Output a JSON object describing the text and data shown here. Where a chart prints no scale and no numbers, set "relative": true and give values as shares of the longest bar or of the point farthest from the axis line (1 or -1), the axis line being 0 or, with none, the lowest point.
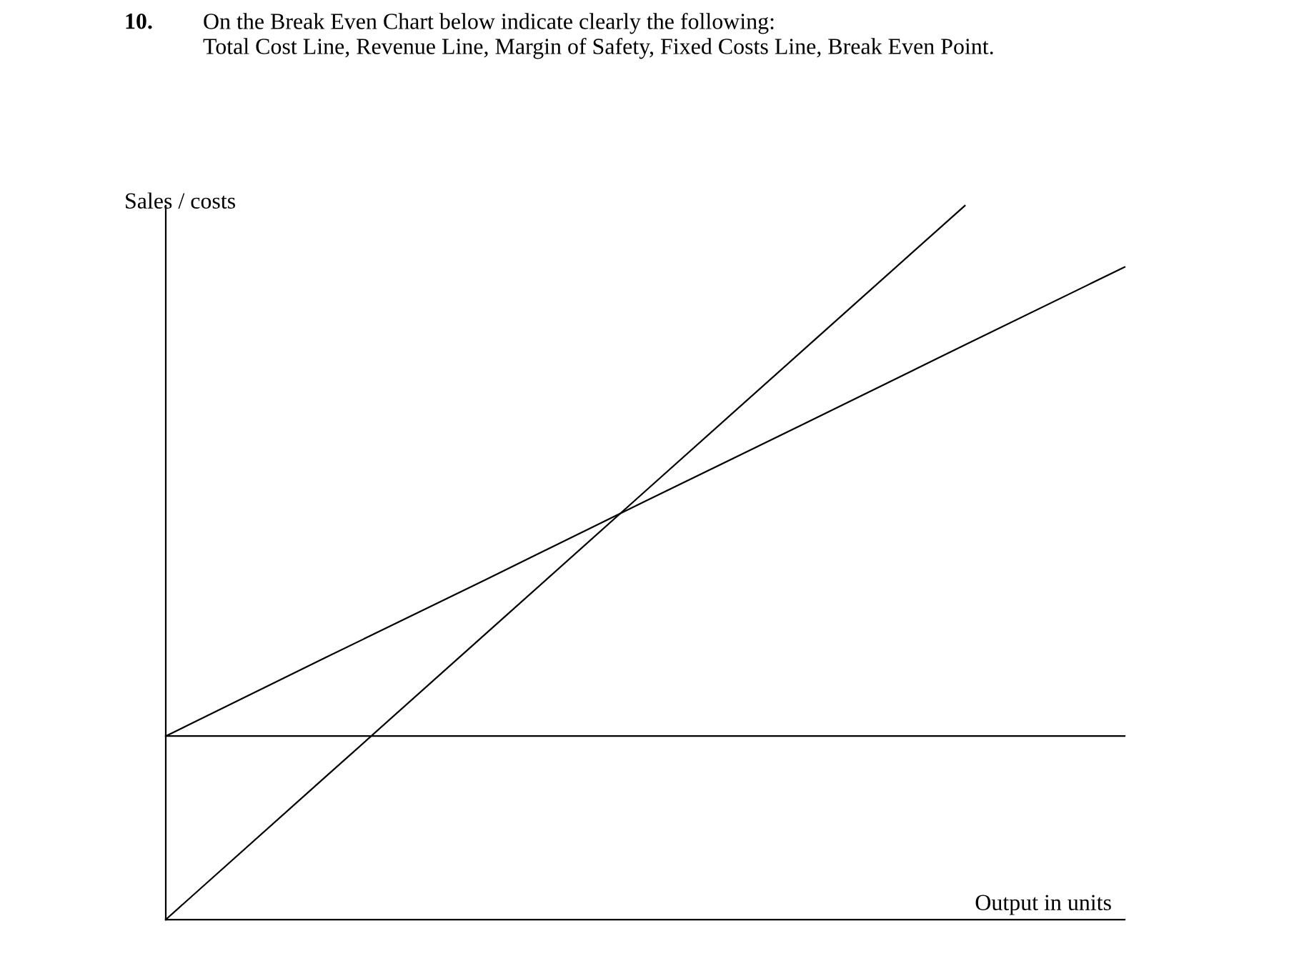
{
  "chart_data": {
    "type": "line",
    "relative": true,
    "title": "On the Break Even Chart below indicate clearly the following:\nTotal Cost Line, Revenue Line, Margin of Safety, Fixed Costs Line, Break Even Point.",
    "annotations": [
      "10."
    ],
    "ylabel": "Sales / costs",
    "xlabel": "Output in units",
    "categories": [
      null,
      null,
      null,
      null,
      null,
      null,
      null
    ],
    "series": [
      {
        "color": "#000000",
        "values": [
          0,
          0.2,
          0.4,
          0.6,
          0.8,
          1,
          null
        ]
      },
      {
        "color": "#000000",
        "values": [
          0.257,
          0.367,
          0.476,
          0.586,
          0.695,
          0.805,
          0.914
        ]
      },
      {
        "color": "#000000",
        "values": [
          0.257,
          0.257,
          0.257,
          0.257,
          0.257,
          0.257,
          0.257
        ]
      }
    ],
    "marker": "none",
    "line_style": "solid"
  }
}
